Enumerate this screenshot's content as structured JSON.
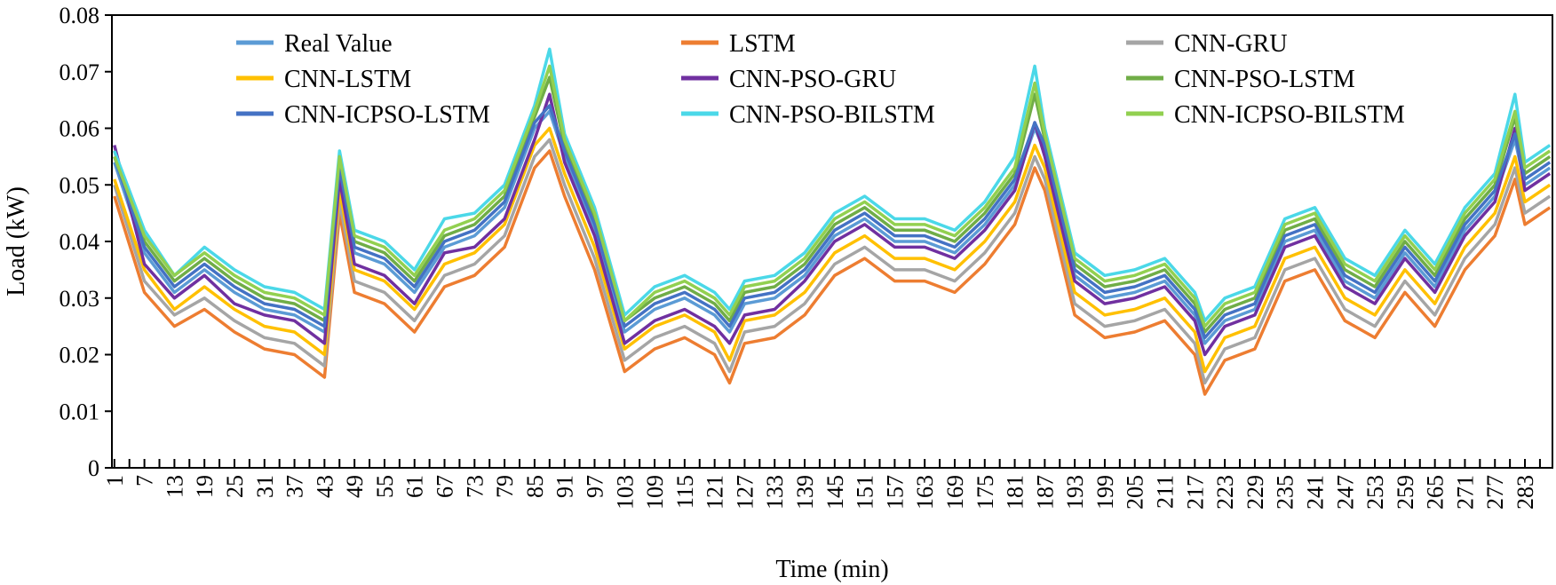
{
  "chart_data": {
    "type": "line",
    "xlabel": "Time (min)",
    "ylabel": "Load (kW)",
    "xlim": [
      1,
      288
    ],
    "ylim": [
      0,
      0.08
    ],
    "y_ticks": [
      0,
      0.01,
      0.02,
      0.03,
      0.04,
      0.05,
      0.06,
      0.07,
      0.08
    ],
    "y_tick_labels": [
      "0",
      "0.01",
      "0.02",
      "0.03",
      "0.04",
      "0.05",
      "0.06",
      "0.07",
      "0.08"
    ],
    "x_tick_labels": [
      "1",
      "7",
      "13",
      "19",
      "25",
      "31",
      "37",
      "43",
      "49",
      "55",
      "61",
      "67",
      "73",
      "79",
      "85",
      "91",
      "97",
      "103",
      "109",
      "115",
      "121",
      "127",
      "133",
      "139",
      "145",
      "151",
      "157",
      "163",
      "169",
      "175",
      "181",
      "187",
      "193",
      "199",
      "205",
      "211",
      "217",
      "223",
      "229",
      "235",
      "241",
      "247",
      "253",
      "259",
      "265",
      "271",
      "277",
      "283"
    ],
    "grid": false,
    "legend_position": "top",
    "x_anchors": [
      1,
      7,
      13,
      19,
      25,
      31,
      37,
      43,
      46,
      49,
      55,
      61,
      67,
      73,
      79,
      85,
      88,
      91,
      97,
      103,
      109,
      115,
      121,
      124,
      127,
      133,
      139,
      145,
      151,
      157,
      163,
      169,
      175,
      181,
      185,
      187,
      193,
      199,
      205,
      211,
      217,
      219,
      223,
      229,
      235,
      241,
      247,
      253,
      259,
      265,
      271,
      277,
      281,
      283,
      288
    ],
    "series": [
      {
        "name": "Real Value",
        "color": "#5B9BD5",
        "values": [
          0.054,
          0.038,
          0.031,
          0.035,
          0.031,
          0.028,
          0.027,
          0.024,
          0.052,
          0.038,
          0.036,
          0.031,
          0.039,
          0.041,
          0.046,
          0.06,
          0.063,
          0.055,
          0.042,
          0.024,
          0.028,
          0.03,
          0.027,
          0.024,
          0.029,
          0.03,
          0.034,
          0.041,
          0.044,
          0.04,
          0.04,
          0.038,
          0.043,
          0.05,
          0.06,
          0.056,
          0.034,
          0.03,
          0.031,
          0.033,
          0.027,
          0.022,
          0.026,
          0.028,
          0.04,
          0.042,
          0.033,
          0.03,
          0.038,
          0.032,
          0.042,
          0.048,
          0.058,
          0.05,
          0.053
        ]
      },
      {
        "name": "LSTM",
        "color": "#ED7D31",
        "values": [
          0.048,
          0.031,
          0.025,
          0.028,
          0.024,
          0.021,
          0.02,
          0.016,
          0.045,
          0.031,
          0.029,
          0.024,
          0.032,
          0.034,
          0.039,
          0.053,
          0.056,
          0.048,
          0.035,
          0.017,
          0.021,
          0.023,
          0.02,
          0.015,
          0.022,
          0.023,
          0.027,
          0.034,
          0.037,
          0.033,
          0.033,
          0.031,
          0.036,
          0.043,
          0.053,
          0.049,
          0.027,
          0.023,
          0.024,
          0.026,
          0.02,
          0.013,
          0.019,
          0.021,
          0.033,
          0.035,
          0.026,
          0.023,
          0.031,
          0.025,
          0.035,
          0.041,
          0.051,
          0.043,
          0.046
        ]
      },
      {
        "name": "CNN-GRU",
        "color": "#A5A5A5",
        "values": [
          0.05,
          0.033,
          0.027,
          0.03,
          0.026,
          0.023,
          0.022,
          0.018,
          0.047,
          0.033,
          0.031,
          0.026,
          0.034,
          0.036,
          0.041,
          0.055,
          0.058,
          0.05,
          0.037,
          0.019,
          0.023,
          0.025,
          0.022,
          0.017,
          0.024,
          0.025,
          0.029,
          0.036,
          0.039,
          0.035,
          0.035,
          0.033,
          0.038,
          0.045,
          0.055,
          0.051,
          0.029,
          0.025,
          0.026,
          0.028,
          0.022,
          0.015,
          0.021,
          0.023,
          0.035,
          0.037,
          0.028,
          0.025,
          0.033,
          0.027,
          0.037,
          0.043,
          0.053,
          0.045,
          0.048
        ]
      },
      {
        "name": "CNN-LSTM",
        "color": "#FFC000",
        "values": [
          0.051,
          0.035,
          0.028,
          0.032,
          0.028,
          0.025,
          0.024,
          0.02,
          0.049,
          0.035,
          0.033,
          0.028,
          0.036,
          0.038,
          0.043,
          0.057,
          0.06,
          0.052,
          0.039,
          0.021,
          0.025,
          0.027,
          0.024,
          0.019,
          0.026,
          0.027,
          0.031,
          0.038,
          0.041,
          0.037,
          0.037,
          0.035,
          0.04,
          0.047,
          0.057,
          0.053,
          0.031,
          0.027,
          0.028,
          0.03,
          0.024,
          0.017,
          0.023,
          0.025,
          0.037,
          0.039,
          0.03,
          0.027,
          0.035,
          0.029,
          0.039,
          0.045,
          0.055,
          0.047,
          0.05
        ]
      },
      {
        "name": "CNN-PSO-GRU",
        "color": "#7030A0",
        "values": [
          0.057,
          0.036,
          0.03,
          0.034,
          0.029,
          0.027,
          0.026,
          0.022,
          0.051,
          0.036,
          0.034,
          0.029,
          0.038,
          0.039,
          0.044,
          0.058,
          0.066,
          0.054,
          0.041,
          0.022,
          0.026,
          0.028,
          0.025,
          0.022,
          0.027,
          0.028,
          0.033,
          0.04,
          0.043,
          0.039,
          0.039,
          0.037,
          0.042,
          0.049,
          0.061,
          0.055,
          0.033,
          0.029,
          0.03,
          0.032,
          0.026,
          0.02,
          0.025,
          0.027,
          0.039,
          0.041,
          0.032,
          0.029,
          0.037,
          0.031,
          0.041,
          0.047,
          0.06,
          0.049,
          0.052
        ]
      },
      {
        "name": "CNN-PSO-LSTM",
        "color": "#70AD47",
        "values": [
          0.056,
          0.04,
          0.033,
          0.037,
          0.033,
          0.03,
          0.029,
          0.026,
          0.054,
          0.04,
          0.038,
          0.033,
          0.041,
          0.043,
          0.048,
          0.062,
          0.069,
          0.057,
          0.044,
          0.026,
          0.03,
          0.032,
          0.029,
          0.026,
          0.031,
          0.032,
          0.036,
          0.043,
          0.046,
          0.042,
          0.042,
          0.04,
          0.045,
          0.052,
          0.066,
          0.058,
          0.036,
          0.032,
          0.033,
          0.035,
          0.029,
          0.024,
          0.028,
          0.03,
          0.042,
          0.044,
          0.035,
          0.032,
          0.04,
          0.034,
          0.044,
          0.05,
          0.062,
          0.052,
          0.055
        ]
      },
      {
        "name": "CNN-ICPSO-LSTM",
        "color": "#4472C4",
        "values": [
          0.055,
          0.039,
          0.032,
          0.036,
          0.032,
          0.029,
          0.028,
          0.025,
          0.053,
          0.039,
          0.037,
          0.032,
          0.04,
          0.042,
          0.047,
          0.061,
          0.064,
          0.056,
          0.043,
          0.025,
          0.029,
          0.031,
          0.028,
          0.025,
          0.03,
          0.031,
          0.035,
          0.042,
          0.045,
          0.041,
          0.041,
          0.039,
          0.044,
          0.051,
          0.061,
          0.057,
          0.035,
          0.031,
          0.032,
          0.034,
          0.028,
          0.023,
          0.027,
          0.029,
          0.041,
          0.043,
          0.034,
          0.031,
          0.039,
          0.033,
          0.043,
          0.049,
          0.059,
          0.051,
          0.054
        ]
      },
      {
        "name": "CNN-PSO-BILSTM",
        "color": "#4BD8E8",
        "values": [
          0.056,
          0.042,
          0.034,
          0.039,
          0.035,
          0.032,
          0.031,
          0.028,
          0.056,
          0.042,
          0.04,
          0.035,
          0.044,
          0.045,
          0.05,
          0.064,
          0.074,
          0.059,
          0.046,
          0.027,
          0.032,
          0.034,
          0.031,
          0.028,
          0.033,
          0.034,
          0.038,
          0.045,
          0.048,
          0.044,
          0.044,
          0.042,
          0.047,
          0.055,
          0.071,
          0.06,
          0.038,
          0.034,
          0.035,
          0.037,
          0.031,
          0.026,
          0.03,
          0.032,
          0.044,
          0.046,
          0.037,
          0.034,
          0.042,
          0.036,
          0.046,
          0.052,
          0.066,
          0.054,
          0.057
        ]
      },
      {
        "name": "CNN-ICPSO-BILSTM",
        "color": "#92D050",
        "values": [
          0.055,
          0.041,
          0.034,
          0.038,
          0.034,
          0.031,
          0.03,
          0.027,
          0.055,
          0.041,
          0.039,
          0.034,
          0.042,
          0.044,
          0.049,
          0.063,
          0.071,
          0.058,
          0.045,
          0.026,
          0.031,
          0.033,
          0.03,
          0.027,
          0.032,
          0.033,
          0.037,
          0.044,
          0.047,
          0.043,
          0.043,
          0.041,
          0.046,
          0.053,
          0.068,
          0.059,
          0.037,
          0.033,
          0.034,
          0.036,
          0.03,
          0.025,
          0.029,
          0.031,
          0.043,
          0.045,
          0.036,
          0.033,
          0.041,
          0.035,
          0.045,
          0.051,
          0.063,
          0.053,
          0.056
        ]
      }
    ]
  }
}
